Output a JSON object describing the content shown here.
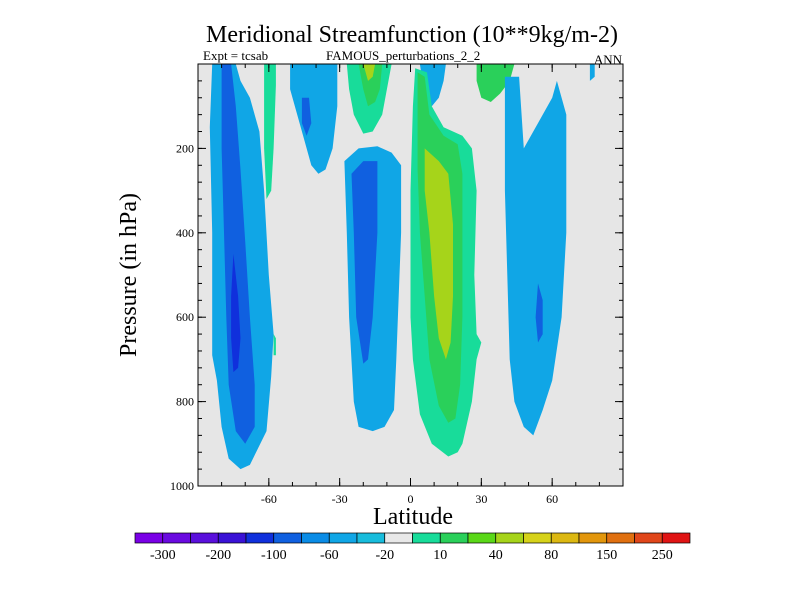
{
  "chart_data": {
    "type": "heatmap",
    "title": "Meridional Streamfunction (10**9kg/m-2)",
    "subtitle_left": "Expt = tcsab",
    "subtitle_center": "FAMOUS_perturbations_2_2",
    "subtitle_right": "ANN",
    "xlabel": "Latitude",
    "ylabel": "Pressure (in hPa)",
    "xlim": [
      -90,
      90
    ],
    "ylim": [
      1000,
      0
    ],
    "x_ticks": [
      -60,
      -30,
      0,
      30,
      60
    ],
    "y_ticks": [
      200,
      400,
      600,
      800,
      1000
    ],
    "x_tick_labels": [
      "-60",
      "-30",
      "0",
      "30",
      "60"
    ],
    "y_tick_labels": [
      "200",
      "400",
      "600",
      "800",
      "1000"
    ],
    "background_color": "#e6e6e6",
    "colorbar": {
      "colors": [
        "#7a00e6",
        "#6a0ae0",
        "#5a10dc",
        "#3a12d6",
        "#1030dc",
        "#1060e0",
        "#0a8ce6",
        "#10a6e6",
        "#18bcdc",
        "#e8e8e8",
        "#18dc9a",
        "#2ad05a",
        "#5ad818",
        "#a6d41a",
        "#d6d21a",
        "#dcb812",
        "#e2960c",
        "#e07010",
        "#e0461a",
        "#e01414"
      ],
      "labels": [
        "-300",
        "-200",
        "-100",
        "-60",
        "-20",
        "10",
        "40",
        "80",
        "150",
        "250"
      ]
    },
    "regions": [
      {
        "name": "sh-deep-cell-outer",
        "level": "-20",
        "points": [
          [
            -84,
            0
          ],
          [
            -74,
            0
          ],
          [
            -72,
            40
          ],
          [
            -68,
            80
          ],
          [
            -64,
            160
          ],
          [
            -62,
            300
          ],
          [
            -60,
            500
          ],
          [
            -58,
            640
          ],
          [
            -59,
            740
          ],
          [
            -61,
            870
          ],
          [
            -68,
            950
          ],
          [
            -72,
            960
          ],
          [
            -77,
            935
          ],
          [
            -80,
            860
          ],
          [
            -82,
            750
          ],
          [
            -84,
            690
          ],
          [
            -84,
            400
          ],
          [
            -85,
            150
          ]
        ]
      },
      {
        "name": "sh-deep-cell-mid",
        "level": "-60",
        "points": [
          [
            -80,
            0
          ],
          [
            -76,
            0
          ],
          [
            -74,
            100
          ],
          [
            -72,
            250
          ],
          [
            -70,
            420
          ],
          [
            -68,
            600
          ],
          [
            -66,
            760
          ],
          [
            -66,
            860
          ],
          [
            -70,
            900
          ],
          [
            -74,
            870
          ],
          [
            -77,
            760
          ],
          [
            -78,
            600
          ],
          [
            -79,
            400
          ],
          [
            -80,
            200
          ]
        ]
      },
      {
        "name": "sh-deep-cell-core",
        "level": "-100",
        "points": [
          [
            -75,
            450
          ],
          [
            -73,
            550
          ],
          [
            -72,
            650
          ],
          [
            -73,
            720
          ],
          [
            -75,
            730
          ],
          [
            -76,
            650
          ],
          [
            -76,
            550
          ]
        ]
      },
      {
        "name": "sh-thin-positive",
        "level": "10",
        "points": [
          [
            -62,
            0
          ],
          [
            -57,
            0
          ],
          [
            -57,
            50
          ],
          [
            -58,
            200
          ],
          [
            -59,
            300
          ],
          [
            -61,
            320
          ],
          [
            -62,
            200
          ]
        ]
      },
      {
        "name": "sh-small-positive",
        "level": "10",
        "points": [
          [
            -58,
            640
          ],
          [
            -57,
            650
          ],
          [
            -57,
            690
          ],
          [
            -58,
            690
          ]
        ]
      },
      {
        "name": "sh-upper-cell",
        "level": "-20",
        "points": [
          [
            -51,
            0
          ],
          [
            -31,
            0
          ],
          [
            -31,
            100
          ],
          [
            -33,
            200
          ],
          [
            -36,
            250
          ],
          [
            -39,
            260
          ],
          [
            -42,
            240
          ],
          [
            -45,
            180
          ],
          [
            -48,
            120
          ],
          [
            -51,
            60
          ]
        ]
      },
      {
        "name": "sh-upper-cell-core",
        "level": "-60",
        "points": [
          [
            -46,
            80
          ],
          [
            -43,
            80
          ],
          [
            -42,
            140
          ],
          [
            -44,
            170
          ],
          [
            -46,
            140
          ]
        ]
      },
      {
        "name": "tropical-sh-cell",
        "level": "-20",
        "points": [
          [
            -28,
            230
          ],
          [
            -22,
            200
          ],
          [
            -14,
            195
          ],
          [
            -8,
            210
          ],
          [
            -4,
            240
          ],
          [
            -4,
            400
          ],
          [
            -5,
            550
          ],
          [
            -6,
            700
          ],
          [
            -7,
            820
          ],
          [
            -11,
            860
          ],
          [
            -16,
            870
          ],
          [
            -22,
            860
          ],
          [
            -24,
            800
          ],
          [
            -26,
            600
          ],
          [
            -27,
            400
          ]
        ]
      },
      {
        "name": "tropical-sh-core",
        "level": "-60",
        "points": [
          [
            -25,
            260
          ],
          [
            -20,
            230
          ],
          [
            -14,
            230
          ],
          [
            -14,
            400
          ],
          [
            -16,
            600
          ],
          [
            -18,
            700
          ],
          [
            -20,
            710
          ],
          [
            -23,
            600
          ],
          [
            -24,
            400
          ]
        ]
      },
      {
        "name": "upper-positive-sh",
        "level": "10",
        "points": [
          [
            -27,
            0
          ],
          [
            -8,
            0
          ],
          [
            -10,
            60
          ],
          [
            -12,
            120
          ],
          [
            -16,
            160
          ],
          [
            -20,
            165
          ],
          [
            -24,
            120
          ],
          [
            -26,
            60
          ]
        ]
      },
      {
        "name": "upper-positive-sh-inner",
        "level": "40",
        "points": [
          [
            -22,
            0
          ],
          [
            -12,
            0
          ],
          [
            -13,
            60
          ],
          [
            -15,
            90
          ],
          [
            -18,
            100
          ],
          [
            -20,
            60
          ]
        ]
      },
      {
        "name": "upper-positive-sh-core",
        "level": "80",
        "points": [
          [
            -20,
            0
          ],
          [
            -15,
            0
          ],
          [
            -16,
            30
          ],
          [
            -18,
            40
          ]
        ]
      },
      {
        "name": "eq-upper-negative",
        "level": "-20",
        "points": [
          [
            4,
            0
          ],
          [
            15,
            0
          ],
          [
            14,
            40
          ],
          [
            12,
            80
          ],
          [
            9,
            100
          ],
          [
            6,
            80
          ]
        ]
      },
      {
        "name": "nh-hadley-outer",
        "level": "10",
        "points": [
          [
            2,
            10
          ],
          [
            7,
            20
          ],
          [
            9,
            100
          ],
          [
            14,
            150
          ],
          [
            22,
            170
          ],
          [
            26,
            200
          ],
          [
            28,
            300
          ],
          [
            27,
            500
          ],
          [
            28,
            640
          ],
          [
            30,
            660
          ],
          [
            28,
            700
          ],
          [
            26,
            800
          ],
          [
            22,
            900
          ],
          [
            20,
            920
          ],
          [
            16,
            930
          ],
          [
            9,
            900
          ],
          [
            4,
            830
          ],
          [
            1,
            700
          ],
          [
            0,
            600
          ],
          [
            0,
            300
          ],
          [
            1,
            100
          ]
        ]
      },
      {
        "name": "nh-hadley-mid",
        "level": "40",
        "points": [
          [
            3,
            20
          ],
          [
            6,
            30
          ],
          [
            8,
            120
          ],
          [
            14,
            170
          ],
          [
            20,
            190
          ],
          [
            22,
            260
          ],
          [
            22,
            400
          ],
          [
            22,
            600
          ],
          [
            21,
            760
          ],
          [
            19,
            840
          ],
          [
            16,
            850
          ],
          [
            12,
            810
          ],
          [
            8,
            700
          ],
          [
            6,
            550
          ],
          [
            4,
            400
          ],
          [
            3,
            250
          ]
        ]
      },
      {
        "name": "nh-hadley-inner",
        "level": "80",
        "points": [
          [
            6,
            200
          ],
          [
            12,
            230
          ],
          [
            16,
            260
          ],
          [
            18,
            380
          ],
          [
            18,
            550
          ],
          [
            17,
            660
          ],
          [
            15,
            700
          ],
          [
            12,
            650
          ],
          [
            10,
            550
          ],
          [
            8,
            400
          ],
          [
            6,
            300
          ]
        ]
      },
      {
        "name": "upper-positive-nh",
        "level": "40",
        "points": [
          [
            28,
            0
          ],
          [
            44,
            0
          ],
          [
            42,
            40
          ],
          [
            38,
            70
          ],
          [
            34,
            90
          ],
          [
            30,
            80
          ],
          [
            28,
            40
          ]
        ]
      },
      {
        "name": "nh-ferrel-outer",
        "level": "-20",
        "points": [
          [
            40,
            30
          ],
          [
            46,
            30
          ],
          [
            48,
            200
          ],
          [
            54,
            140
          ],
          [
            60,
            80
          ],
          [
            62,
            40
          ],
          [
            66,
            120
          ],
          [
            66,
            400
          ],
          [
            64,
            600
          ],
          [
            60,
            750
          ],
          [
            56,
            820
          ],
          [
            52,
            880
          ],
          [
            48,
            860
          ],
          [
            44,
            800
          ],
          [
            42,
            700
          ],
          [
            41,
            500
          ],
          [
            40,
            300
          ]
        ]
      },
      {
        "name": "nh-ferrel-core",
        "level": "-60",
        "points": [
          [
            54,
            520
          ],
          [
            56,
            560
          ],
          [
            56,
            640
          ],
          [
            54,
            660
          ],
          [
            53,
            600
          ]
        ]
      },
      {
        "name": "nh-polar-spot",
        "level": "-20",
        "points": [
          [
            76,
            0
          ],
          [
            78,
            0
          ],
          [
            78,
            30
          ],
          [
            76,
            40
          ]
        ]
      }
    ]
  }
}
